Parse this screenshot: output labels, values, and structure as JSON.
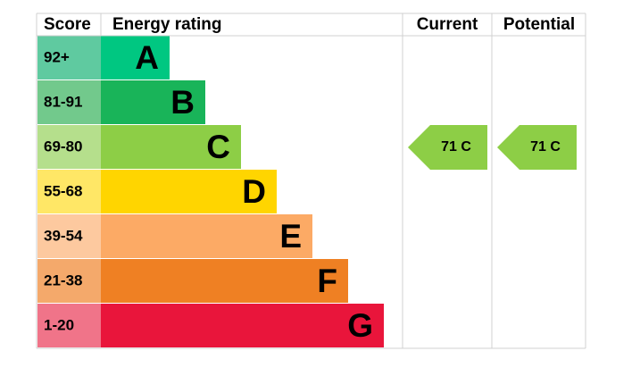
{
  "header": {
    "score": "Score",
    "rating": "Energy rating",
    "current": "Current",
    "potential": "Potential"
  },
  "rows": [
    {
      "score": "92+",
      "band": "A"
    },
    {
      "score": "81-91",
      "band": "B"
    },
    {
      "score": "69-80",
      "band": "C"
    },
    {
      "score": "55-68",
      "band": "D"
    },
    {
      "score": "39-54",
      "band": "E"
    },
    {
      "score": "21-38",
      "band": "F"
    },
    {
      "score": "1-20",
      "band": "G"
    }
  ],
  "current": {
    "label": "71 C"
  },
  "potential": {
    "label": "71 C"
  }
}
